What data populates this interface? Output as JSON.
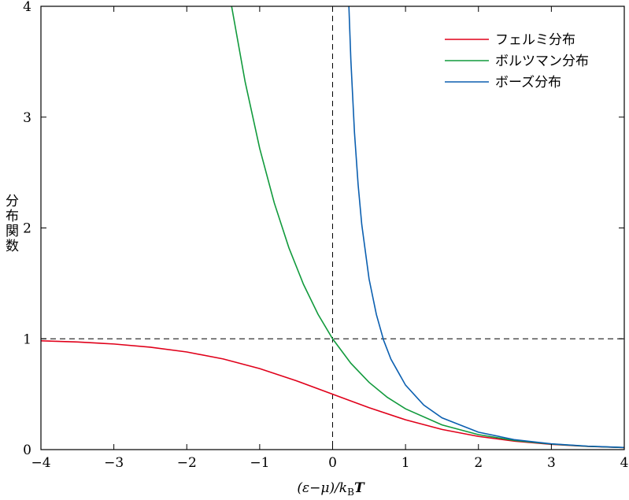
{
  "chart_data": {
    "type": "line",
    "x_label": {
      "main": "(ε−μ)/k",
      "sub": "B",
      "end": "T"
    },
    "y_label": "分布関数",
    "xlim": [
      -4,
      4
    ],
    "ylim": [
      0,
      4
    ],
    "xticks": [
      {
        "value": -4,
        "label": "−4"
      },
      {
        "value": -3,
        "label": "−3"
      },
      {
        "value": -2,
        "label": "−2"
      },
      {
        "value": -1,
        "label": "−1"
      },
      0,
      1,
      2,
      3,
      4
    ],
    "yticks": [
      0,
      1,
      2,
      3,
      4
    ],
    "hlines": [
      1
    ],
    "vlines": [
      0
    ],
    "legend": "upper right",
    "series": [
      {
        "name": "フェルミ分布",
        "color": "#e0001a",
        "x": [
          -4,
          -3.5,
          -3,
          -2.5,
          -2,
          -1.5,
          -1,
          -0.5,
          0,
          0.5,
          1,
          1.5,
          2,
          2.5,
          3,
          3.5,
          4
        ],
        "values": [
          0.982,
          0.971,
          0.953,
          0.924,
          0.881,
          0.818,
          0.731,
          0.622,
          0.5,
          0.378,
          0.269,
          0.182,
          0.119,
          0.076,
          0.047,
          0.029,
          0.018
        ]
      },
      {
        "name": "ボルツマン分布",
        "color": "#119a3c",
        "x": [
          -1.4,
          -1.2,
          -1,
          -0.8,
          -0.6,
          -0.4,
          -0.2,
          0,
          0.25,
          0.5,
          0.75,
          1,
          1.5,
          2,
          2.5,
          3,
          3.5,
          4
        ],
        "values": [
          4.055,
          3.32,
          2.718,
          2.226,
          1.822,
          1.492,
          1.221,
          1,
          0.779,
          0.607,
          0.472,
          0.368,
          0.223,
          0.135,
          0.082,
          0.05,
          0.03,
          0.018
        ]
      },
      {
        "name": "ボーズ分布",
        "color": "#0b5fb0",
        "x": [
          0.22,
          0.25,
          0.3,
          0.35,
          0.4,
          0.5,
          0.6,
          0.7,
          0.8,
          1,
          1.25,
          1.5,
          2,
          2.5,
          3,
          3.5,
          4
        ],
        "values": [
          4.06,
          3.52,
          2.86,
          2.39,
          2.03,
          1.54,
          1.22,
          0.986,
          0.816,
          0.582,
          0.402,
          0.287,
          0.157,
          0.089,
          0.052,
          0.031,
          0.019
        ]
      }
    ]
  }
}
